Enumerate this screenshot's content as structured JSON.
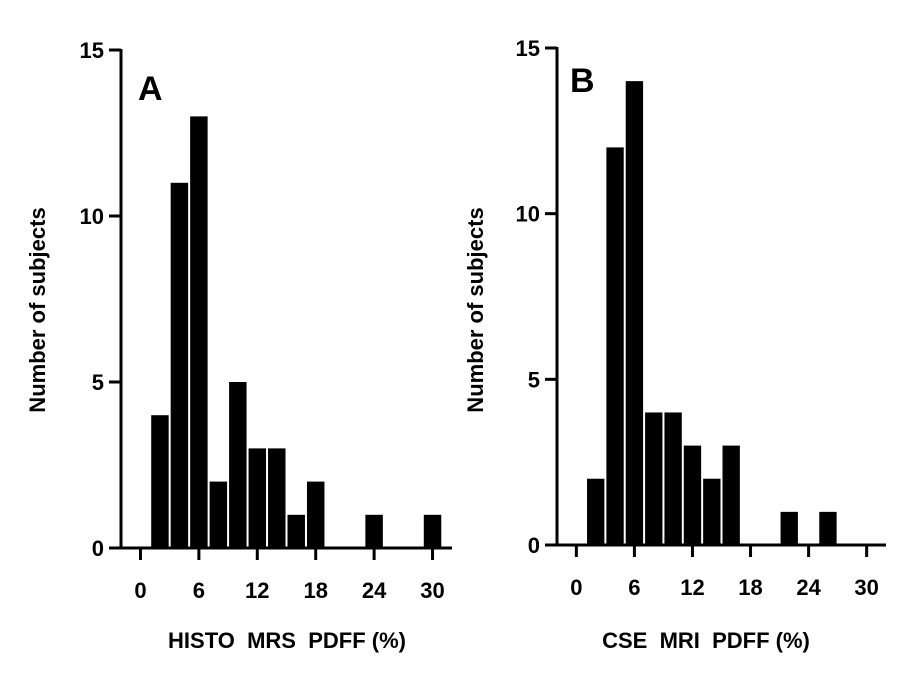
{
  "chart_data": [
    {
      "type": "bar",
      "panel_label": "A",
      "xlabel": "HISTO  MRS  PDFF (%)",
      "ylabel": "Number of subjects",
      "xlim": [
        -2,
        32
      ],
      "ylim": [
        0,
        15
      ],
      "x_ticks": [
        0,
        6,
        12,
        18,
        24,
        30
      ],
      "y_ticks": [
        0,
        5,
        10,
        15
      ],
      "bin_width": 2,
      "bins": [
        {
          "start": 1,
          "end": 3,
          "value": 4
        },
        {
          "start": 3,
          "end": 5,
          "value": 11
        },
        {
          "start": 5,
          "end": 7,
          "value": 13
        },
        {
          "start": 7,
          "end": 9,
          "value": 2
        },
        {
          "start": 9,
          "end": 11,
          "value": 5
        },
        {
          "start": 11,
          "end": 13,
          "value": 3
        },
        {
          "start": 13,
          "end": 15,
          "value": 3
        },
        {
          "start": 15,
          "end": 17,
          "value": 1
        },
        {
          "start": 17,
          "end": 19,
          "value": 2
        },
        {
          "start": 23,
          "end": 25,
          "value": 1
        },
        {
          "start": 29,
          "end": 31,
          "value": 1
        }
      ]
    },
    {
      "type": "bar",
      "panel_label": "B",
      "xlabel": "CSE  MRI  PDFF (%)",
      "ylabel": "Number of subjects",
      "xlim": [
        -2,
        32
      ],
      "ylim": [
        0,
        15
      ],
      "x_ticks": [
        0,
        6,
        12,
        18,
        24,
        30
      ],
      "y_ticks": [
        0,
        5,
        10,
        15
      ],
      "bin_width": 2,
      "bins": [
        {
          "start": 1,
          "end": 3,
          "value": 2
        },
        {
          "start": 3,
          "end": 5,
          "value": 12
        },
        {
          "start": 5,
          "end": 7,
          "value": 14
        },
        {
          "start": 7,
          "end": 9,
          "value": 4
        },
        {
          "start": 9,
          "end": 11,
          "value": 4
        },
        {
          "start": 11,
          "end": 13,
          "value": 3
        },
        {
          "start": 13,
          "end": 15,
          "value": 2
        },
        {
          "start": 15,
          "end": 17,
          "value": 3
        },
        {
          "start": 21,
          "end": 23,
          "value": 1
        },
        {
          "start": 25,
          "end": 27,
          "value": 1
        }
      ]
    }
  ]
}
